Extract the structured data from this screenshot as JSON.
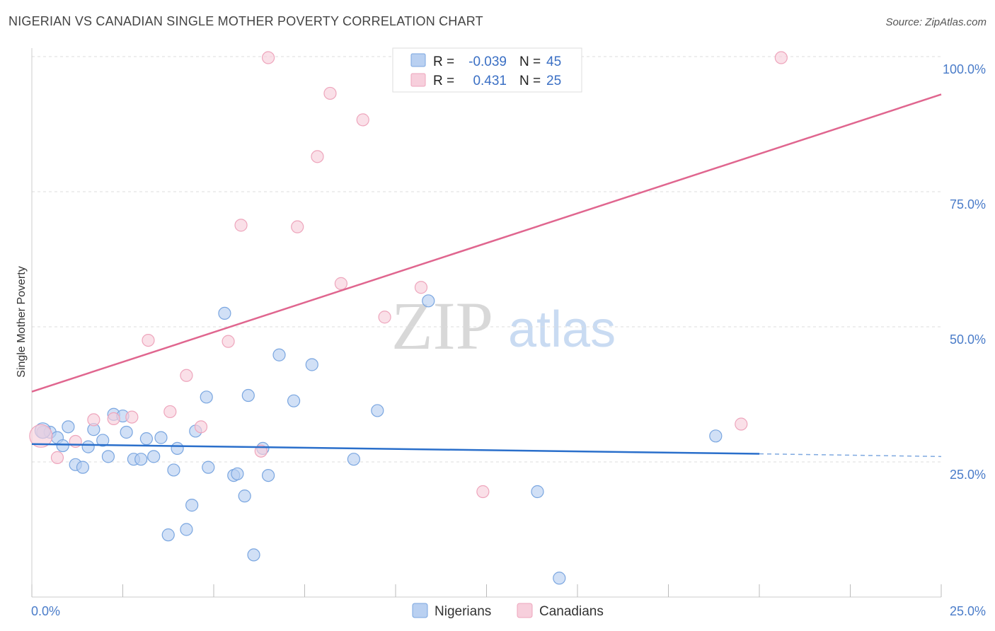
{
  "header": {
    "title": "NIGERIAN VS CANADIAN SINGLE MOTHER POVERTY CORRELATION CHART",
    "source": "Source: ZipAtlas.com"
  },
  "watermark": {
    "zip": "ZIP",
    "atlas": "atlas"
  },
  "chart_data": {
    "type": "scatter",
    "xlabel": "",
    "ylabel": "Single Mother Poverty",
    "xlim": [
      0,
      25
    ],
    "ylim": [
      0,
      100
    ],
    "x_tick_labels": [
      "0.0%",
      "25.0%"
    ],
    "y_ticks": [
      {
        "value": 25,
        "label": "25.0%"
      },
      {
        "value": 50,
        "label": "50.0%"
      },
      {
        "value": 75,
        "label": "75.0%"
      },
      {
        "value": 100,
        "label": "100.0%"
      }
    ],
    "grid": "horizontal dashed",
    "legend_placement": "top-center",
    "series": [
      {
        "name": "Nigerians",
        "color": "#7aa6e0",
        "fill": "#b9d0f1",
        "line_color": "#2a6fcb",
        "stats": {
          "r_label": "R =",
          "r": "-0.039",
          "n_label": "N =",
          "n": "45"
        },
        "trend": {
          "x0": 0,
          "y0": 28.3,
          "x1": 20,
          "y1": 26.5,
          "dash_to_x": 25,
          "dash_to_y": 26.0
        },
        "points": [
          [
            0.3,
            30.5
          ],
          [
            0.5,
            30.5
          ],
          [
            0.7,
            29.5
          ],
          [
            0.85,
            28.0
          ],
          [
            1.0,
            31.5
          ],
          [
            1.2,
            24.5
          ],
          [
            1.4,
            24.0
          ],
          [
            1.55,
            27.8
          ],
          [
            1.7,
            31.0
          ],
          [
            1.95,
            29.0
          ],
          [
            2.1,
            26.0
          ],
          [
            2.25,
            33.8
          ],
          [
            2.5,
            33.5
          ],
          [
            2.6,
            30.5
          ],
          [
            2.8,
            25.5
          ],
          [
            3.0,
            25.5
          ],
          [
            3.15,
            29.3
          ],
          [
            3.35,
            26.0
          ],
          [
            3.55,
            29.5
          ],
          [
            3.75,
            11.5
          ],
          [
            3.9,
            23.5
          ],
          [
            4.0,
            27.5
          ],
          [
            4.25,
            12.5
          ],
          [
            4.4,
            17.0
          ],
          [
            4.5,
            30.7
          ],
          [
            4.8,
            37.0
          ],
          [
            4.85,
            24.0
          ],
          [
            5.3,
            52.5
          ],
          [
            5.55,
            22.5
          ],
          [
            5.65,
            22.8
          ],
          [
            5.85,
            18.7
          ],
          [
            5.95,
            37.3
          ],
          [
            6.1,
            7.8
          ],
          [
            6.35,
            27.5
          ],
          [
            6.5,
            22.5
          ],
          [
            6.8,
            44.8
          ],
          [
            7.2,
            36.3
          ],
          [
            7.7,
            43.0
          ],
          [
            8.85,
            25.5
          ],
          [
            9.5,
            34.5
          ],
          [
            10.9,
            54.8
          ],
          [
            13.9,
            19.5
          ],
          [
            14.5,
            3.5
          ],
          [
            18.8,
            29.8
          ],
          [
            0.3,
            30.8
          ]
        ]
      },
      {
        "name": "Canadians",
        "color": "#eea5bc",
        "fill": "#f7cfdc",
        "line_color": "#e0668f",
        "stats": {
          "r_label": "R =",
          "r": "0.431",
          "n_label": "N =",
          "n": "25"
        },
        "trend": {
          "x0": 0,
          "y0": 38.0,
          "x1": 25,
          "y1": 93.0
        },
        "points": [
          [
            0.25,
            29.8
          ],
          [
            0.7,
            25.8
          ],
          [
            1.2,
            28.8
          ],
          [
            1.7,
            32.8
          ],
          [
            2.25,
            33.0
          ],
          [
            2.75,
            33.3
          ],
          [
            3.2,
            47.5
          ],
          [
            3.8,
            34.3
          ],
          [
            4.25,
            41.0
          ],
          [
            4.65,
            31.5
          ],
          [
            5.4,
            47.3
          ],
          [
            5.75,
            68.8
          ],
          [
            6.3,
            27.0
          ],
          [
            6.5,
            99.8
          ],
          [
            7.3,
            68.5
          ],
          [
            7.85,
            81.5
          ],
          [
            8.2,
            93.2
          ],
          [
            8.5,
            58.0
          ],
          [
            9.1,
            88.3
          ],
          [
            9.7,
            51.8
          ],
          [
            10.7,
            57.3
          ],
          [
            10.8,
            99.8
          ],
          [
            12.4,
            19.5
          ],
          [
            19.5,
            32.0
          ],
          [
            20.6,
            99.8
          ]
        ]
      }
    ]
  }
}
